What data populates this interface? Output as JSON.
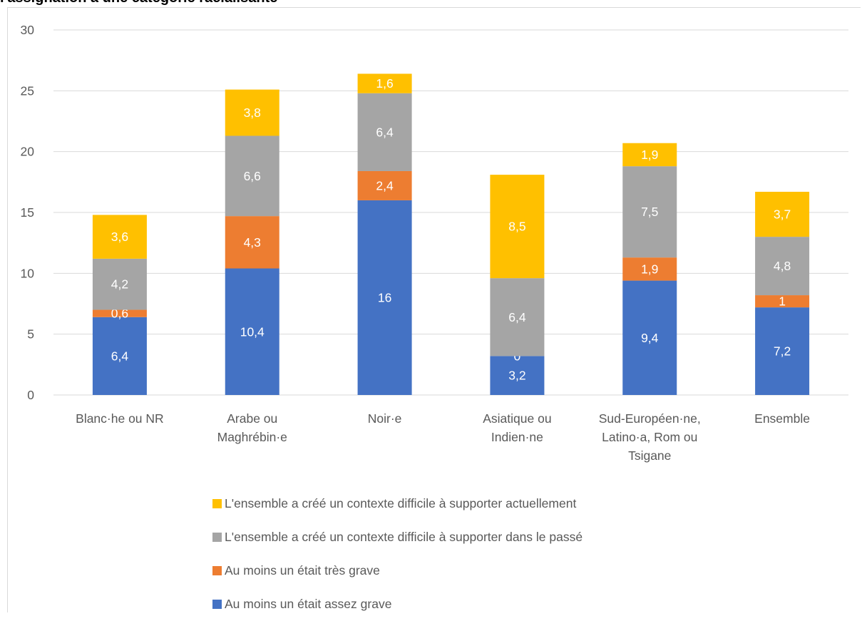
{
  "chart_data": {
    "type": "bar",
    "stacked": true,
    "title": "l'assignation à une catégorie racialisante",
    "ylim": [
      0,
      30
    ],
    "yticks": [
      0,
      5,
      10,
      15,
      20,
      25,
      30
    ],
    "grid": true,
    "legend_position": "bottom",
    "categories": [
      [
        "Blanc·he ou NR"
      ],
      [
        "Arabe ou",
        "Maghrébin·e"
      ],
      [
        "Noir·e"
      ],
      [
        "Asiatique ou",
        "Indien·ne"
      ],
      [
        "Sud-Européen·ne,",
        "Latino·a, Rom ou",
        "Tsigane"
      ],
      [
        "Ensemble"
      ]
    ],
    "series": [
      {
        "name": "Au moins un était assez grave",
        "color": "#4472c4",
        "values": [
          6.4,
          10.4,
          16,
          3.2,
          9.4,
          7.2
        ],
        "labels": [
          "6,4",
          "10,4",
          "16",
          "3,2",
          "9,4",
          "7,2"
        ]
      },
      {
        "name": "Au moins un était très grave",
        "color": "#ed7d31",
        "values": [
          0.6,
          4.3,
          2.4,
          0,
          1.9,
          1
        ],
        "labels": [
          "0,6",
          "4,3",
          "2,4",
          "0",
          "1,9",
          "1"
        ]
      },
      {
        "name": "L'ensemble a créé un contexte difficile à supporter dans le passé",
        "color": "#a5a5a5",
        "values": [
          4.2,
          6.6,
          6.4,
          6.4,
          7.5,
          4.8
        ],
        "labels": [
          "4,2",
          "6,6",
          "6,4",
          "6,4",
          "7,5",
          "4,8"
        ]
      },
      {
        "name": "L'ensemble a créé un contexte difficile à supporter actuellement",
        "color": "#ffc000",
        "values": [
          3.6,
          3.8,
          1.6,
          8.5,
          1.9,
          3.7
        ],
        "labels": [
          "3,6",
          "3,8",
          "1,6",
          "8,5",
          "1,9",
          "3,7"
        ]
      }
    ],
    "legend_order": [
      3,
      2,
      1,
      0
    ]
  }
}
